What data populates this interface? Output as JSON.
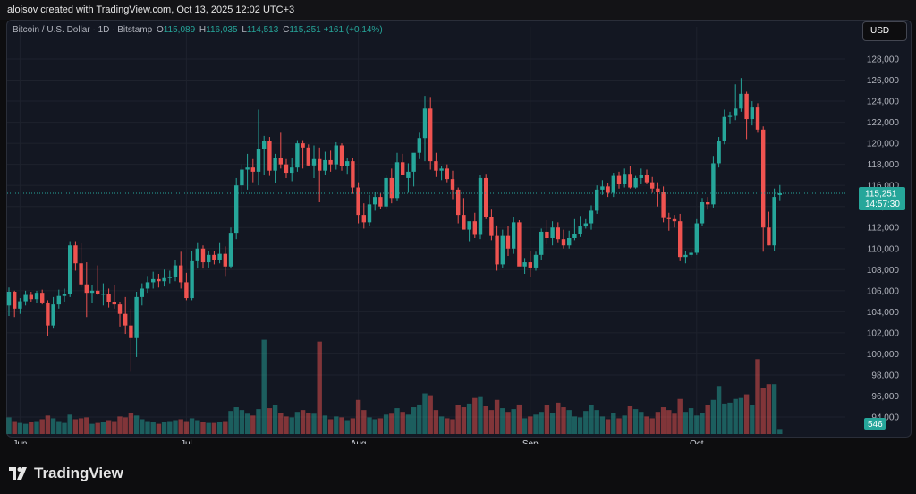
{
  "header": {
    "credit": "aloisov created with TradingView.com, Oct 13, 2025 12:02 UTC+3"
  },
  "legend": {
    "symbol": "Bitcoin / U.S. Dollar · 1D · Bitstamp",
    "o_label": "O",
    "o": "115,089",
    "h_label": "H",
    "h": "116,035",
    "l_label": "L",
    "l": "114,513",
    "c_label": "C",
    "c": "115,251",
    "change": "+161 (+0.14%)"
  },
  "currency": "USD",
  "brand": {
    "name": "TradingView"
  },
  "colors": {
    "up": "#26a69a",
    "down": "#ef5350",
    "background": "#131722",
    "grid": "#1e222d"
  },
  "chart_data": {
    "type": "candlestick",
    "title": "Bitcoin / U.S. Dollar · 1D · Bitstamp",
    "y_ticks": [
      "94,000",
      "96,000",
      "98,000",
      "100,000",
      "102,000",
      "104,000",
      "106,000",
      "108,000",
      "110,000",
      "112,000",
      "114,000",
      "116,000",
      "118,000",
      "120,000",
      "122,000",
      "124,000",
      "126,000",
      "128,000"
    ],
    "x_labels": [
      {
        "label": "Jun",
        "index": 2
      },
      {
        "label": "Jul",
        "index": 32
      },
      {
        "label": "Aug",
        "index": 63
      },
      {
        "label": "Sep",
        "index": 94
      },
      {
        "label": "Oct",
        "index": 124
      }
    ],
    "last_price_label": "115,251",
    "countdown": "14:57:30",
    "volume_label": "546",
    "last_price": 115251,
    "ylim": [
      93000,
      130000
    ],
    "volume_ylim": [
      0,
      12000
    ],
    "candles": [
      {
        "o": 104600,
        "h": 106300,
        "l": 103600,
        "c": 105900,
        "v": 1800
      },
      {
        "o": 105900,
        "h": 106000,
        "l": 103500,
        "c": 104300,
        "v": 1400
      },
      {
        "o": 104300,
        "h": 105300,
        "l": 103800,
        "c": 105000,
        "v": 1200
      },
      {
        "o": 105000,
        "h": 106000,
        "l": 104600,
        "c": 105600,
        "v": 1100
      },
      {
        "o": 105600,
        "h": 105900,
        "l": 104900,
        "c": 105200,
        "v": 1300
      },
      {
        "o": 105200,
        "h": 106000,
        "l": 104800,
        "c": 105800,
        "v": 1400
      },
      {
        "o": 105800,
        "h": 106100,
        "l": 104700,
        "c": 104800,
        "v": 1600
      },
      {
        "o": 104800,
        "h": 105100,
        "l": 101700,
        "c": 102700,
        "v": 2000
      },
      {
        "o": 102700,
        "h": 105400,
        "l": 102400,
        "c": 104700,
        "v": 1700
      },
      {
        "o": 104700,
        "h": 106100,
        "l": 104300,
        "c": 105500,
        "v": 1400
      },
      {
        "o": 105500,
        "h": 106200,
        "l": 104900,
        "c": 105700,
        "v": 1200
      },
      {
        "o": 105700,
        "h": 110700,
        "l": 105400,
        "c": 110300,
        "v": 2100
      },
      {
        "o": 110300,
        "h": 110700,
        "l": 107900,
        "c": 108600,
        "v": 1600
      },
      {
        "o": 108600,
        "h": 110500,
        "l": 106300,
        "c": 106600,
        "v": 1700
      },
      {
        "o": 106600,
        "h": 108700,
        "l": 103500,
        "c": 105800,
        "v": 1800
      },
      {
        "o": 105800,
        "h": 106500,
        "l": 104800,
        "c": 106000,
        "v": 1100
      },
      {
        "o": 106000,
        "h": 108400,
        "l": 105600,
        "c": 105700,
        "v": 1200
      },
      {
        "o": 105700,
        "h": 106700,
        "l": 104600,
        "c": 105700,
        "v": 1300
      },
      {
        "o": 105700,
        "h": 106200,
        "l": 104400,
        "c": 104900,
        "v": 1500
      },
      {
        "o": 104900,
        "h": 106500,
        "l": 104300,
        "c": 104700,
        "v": 1400
      },
      {
        "o": 104700,
        "h": 104900,
        "l": 102600,
        "c": 103800,
        "v": 1900
      },
      {
        "o": 103800,
        "h": 105400,
        "l": 101900,
        "c": 102700,
        "v": 1800
      },
      {
        "o": 102700,
        "h": 104300,
        "l": 98300,
        "c": 101500,
        "v": 2300
      },
      {
        "o": 101500,
        "h": 105900,
        "l": 99700,
        "c": 105400,
        "v": 2000
      },
      {
        "o": 105400,
        "h": 106700,
        "l": 104600,
        "c": 106200,
        "v": 1600
      },
      {
        "o": 106200,
        "h": 107400,
        "l": 105800,
        "c": 106800,
        "v": 1400
      },
      {
        "o": 106800,
        "h": 107800,
        "l": 106200,
        "c": 107100,
        "v": 1300
      },
      {
        "o": 107100,
        "h": 107600,
        "l": 106300,
        "c": 106900,
        "v": 1100
      },
      {
        "o": 106900,
        "h": 108000,
        "l": 106400,
        "c": 107200,
        "v": 1300
      },
      {
        "o": 107200,
        "h": 107900,
        "l": 106700,
        "c": 107300,
        "v": 1400
      },
      {
        "o": 107300,
        "h": 108900,
        "l": 106900,
        "c": 108400,
        "v": 1500
      },
      {
        "o": 108400,
        "h": 109700,
        "l": 106200,
        "c": 106800,
        "v": 1600
      },
      {
        "o": 106800,
        "h": 107700,
        "l": 105100,
        "c": 105300,
        "v": 1400
      },
      {
        "o": 105300,
        "h": 109800,
        "l": 105100,
        "c": 108800,
        "v": 1700
      },
      {
        "o": 108800,
        "h": 110600,
        "l": 108100,
        "c": 110000,
        "v": 1500
      },
      {
        "o": 110000,
        "h": 110300,
        "l": 108100,
        "c": 108700,
        "v": 1300
      },
      {
        "o": 108700,
        "h": 109800,
        "l": 108200,
        "c": 109400,
        "v": 1200
      },
      {
        "o": 109400,
        "h": 109800,
        "l": 108500,
        "c": 108900,
        "v": 1200
      },
      {
        "o": 108900,
        "h": 110600,
        "l": 108600,
        "c": 109500,
        "v": 1300
      },
      {
        "o": 109500,
        "h": 110200,
        "l": 107400,
        "c": 108300,
        "v": 1400
      },
      {
        "o": 108300,
        "h": 112000,
        "l": 108100,
        "c": 111500,
        "v": 2500
      },
      {
        "o": 111500,
        "h": 116700,
        "l": 110900,
        "c": 116000,
        "v": 2900
      },
      {
        "o": 116000,
        "h": 118000,
        "l": 115400,
        "c": 117500,
        "v": 2600
      },
      {
        "o": 117500,
        "h": 119000,
        "l": 115600,
        "c": 117700,
        "v": 2200
      },
      {
        "o": 117700,
        "h": 118500,
        "l": 116300,
        "c": 117300,
        "v": 2000
      },
      {
        "o": 117300,
        "h": 123200,
        "l": 116000,
        "c": 119500,
        "v": 2700
      },
      {
        "o": 119500,
        "h": 120700,
        "l": 117000,
        "c": 120200,
        "v": 10200
      },
      {
        "o": 120200,
        "h": 120600,
        "l": 116900,
        "c": 117400,
        "v": 2800
      },
      {
        "o": 117400,
        "h": 119000,
        "l": 116200,
        "c": 118600,
        "v": 3100
      },
      {
        "o": 118600,
        "h": 121000,
        "l": 117600,
        "c": 118000,
        "v": 2300
      },
      {
        "o": 118000,
        "h": 118500,
        "l": 116700,
        "c": 117200,
        "v": 1900
      },
      {
        "o": 117200,
        "h": 118600,
        "l": 116400,
        "c": 117700,
        "v": 1800
      },
      {
        "o": 117700,
        "h": 120300,
        "l": 117300,
        "c": 120000,
        "v": 2400
      },
      {
        "o": 120000,
        "h": 120300,
        "l": 117600,
        "c": 119600,
        "v": 2600
      },
      {
        "o": 119600,
        "h": 119900,
        "l": 117800,
        "c": 117900,
        "v": 2300
      },
      {
        "o": 117900,
        "h": 119800,
        "l": 116700,
        "c": 118500,
        "v": 2200
      },
      {
        "o": 118500,
        "h": 119600,
        "l": 114400,
        "c": 117400,
        "v": 10000
      },
      {
        "o": 117400,
        "h": 119200,
        "l": 117000,
        "c": 118400,
        "v": 2000
      },
      {
        "o": 118400,
        "h": 119300,
        "l": 117300,
        "c": 118000,
        "v": 1600
      },
      {
        "o": 118000,
        "h": 120100,
        "l": 117500,
        "c": 119800,
        "v": 1900
      },
      {
        "o": 119800,
        "h": 120000,
        "l": 117400,
        "c": 117800,
        "v": 1800
      },
      {
        "o": 117800,
        "h": 118600,
        "l": 117100,
        "c": 118300,
        "v": 1500
      },
      {
        "o": 118300,
        "h": 118600,
        "l": 115200,
        "c": 115800,
        "v": 1700
      },
      {
        "o": 115800,
        "h": 116300,
        "l": 112400,
        "c": 113200,
        "v": 3700
      },
      {
        "o": 113200,
        "h": 114300,
        "l": 111900,
        "c": 112500,
        "v": 2600
      },
      {
        "o": 112500,
        "h": 115100,
        "l": 112100,
        "c": 114200,
        "v": 1800
      },
      {
        "o": 114200,
        "h": 115400,
        "l": 113600,
        "c": 114900,
        "v": 1600
      },
      {
        "o": 114900,
        "h": 115300,
        "l": 113800,
        "c": 114000,
        "v": 1700
      },
      {
        "o": 114000,
        "h": 117000,
        "l": 113800,
        "c": 116700,
        "v": 2100
      },
      {
        "o": 116700,
        "h": 117600,
        "l": 114300,
        "c": 114800,
        "v": 2200
      },
      {
        "o": 114800,
        "h": 119100,
        "l": 114500,
        "c": 118200,
        "v": 2800
      },
      {
        "o": 118200,
        "h": 119000,
        "l": 117200,
        "c": 117000,
        "v": 2400
      },
      {
        "o": 116700,
        "h": 118100,
        "l": 115300,
        "c": 117300,
        "v": 2100
      },
      {
        "o": 117300,
        "h": 119000,
        "l": 115900,
        "c": 119100,
        "v": 2900
      },
      {
        "o": 119100,
        "h": 121000,
        "l": 118500,
        "c": 120500,
        "v": 3200
      },
      {
        "o": 120500,
        "h": 124500,
        "l": 118300,
        "c": 123300,
        "v": 4400
      },
      {
        "o": 123300,
        "h": 124400,
        "l": 117500,
        "c": 118300,
        "v": 4200
      },
      {
        "o": 118300,
        "h": 119100,
        "l": 116800,
        "c": 117400,
        "v": 2600
      },
      {
        "o": 117400,
        "h": 117800,
        "l": 116500,
        "c": 117600,
        "v": 1900
      },
      {
        "o": 117600,
        "h": 118000,
        "l": 116300,
        "c": 116600,
        "v": 1700
      },
      {
        "o": 116600,
        "h": 117400,
        "l": 114700,
        "c": 115600,
        "v": 1600
      },
      {
        "o": 115600,
        "h": 115800,
        "l": 112400,
        "c": 113200,
        "v": 3100
      },
      {
        "o": 113200,
        "h": 114800,
        "l": 112000,
        "c": 111800,
        "v": 2900
      },
      {
        "o": 111800,
        "h": 112400,
        "l": 110700,
        "c": 112600,
        "v": 3300
      },
      {
        "o": 112600,
        "h": 113400,
        "l": 111000,
        "c": 111300,
        "v": 3900
      },
      {
        "o": 111300,
        "h": 117000,
        "l": 110900,
        "c": 116700,
        "v": 4000
      },
      {
        "o": 116700,
        "h": 117100,
        "l": 112800,
        "c": 113000,
        "v": 3000
      },
      {
        "o": 113000,
        "h": 113700,
        "l": 110800,
        "c": 111200,
        "v": 2600
      },
      {
        "o": 111200,
        "h": 112200,
        "l": 107900,
        "c": 108500,
        "v": 3700
      },
      {
        "o": 108500,
        "h": 111800,
        "l": 108200,
        "c": 111200,
        "v": 2800
      },
      {
        "o": 111200,
        "h": 112100,
        "l": 109300,
        "c": 110000,
        "v": 2400
      },
      {
        "o": 110000,
        "h": 113000,
        "l": 109500,
        "c": 112500,
        "v": 2700
      },
      {
        "o": 112500,
        "h": 112700,
        "l": 108400,
        "c": 108300,
        "v": 3200
      },
      {
        "o": 108300,
        "h": 109100,
        "l": 107600,
        "c": 108700,
        "v": 1700
      },
      {
        "o": 108700,
        "h": 109800,
        "l": 107300,
        "c": 108200,
        "v": 1900
      },
      {
        "o": 108200,
        "h": 109700,
        "l": 107900,
        "c": 109400,
        "v": 2100
      },
      {
        "o": 109400,
        "h": 111900,
        "l": 108900,
        "c": 111600,
        "v": 2400
      },
      {
        "o": 111600,
        "h": 112700,
        "l": 110400,
        "c": 111000,
        "v": 3100
      },
      {
        "o": 111000,
        "h": 112600,
        "l": 110300,
        "c": 112000,
        "v": 2300
      },
      {
        "o": 112000,
        "h": 112500,
        "l": 110600,
        "c": 110900,
        "v": 3400
      },
      {
        "o": 110900,
        "h": 111800,
        "l": 110000,
        "c": 110300,
        "v": 2900
      },
      {
        "o": 110300,
        "h": 111700,
        "l": 110000,
        "c": 111000,
        "v": 2600
      },
      {
        "o": 111000,
        "h": 112800,
        "l": 110800,
        "c": 111400,
        "v": 1900
      },
      {
        "o": 111400,
        "h": 113100,
        "l": 111100,
        "c": 112100,
        "v": 1800
      },
      {
        "o": 112100,
        "h": 112800,
        "l": 111900,
        "c": 112400,
        "v": 2500
      },
      {
        "o": 112400,
        "h": 114100,
        "l": 111800,
        "c": 113600,
        "v": 3100
      },
      {
        "o": 113600,
        "h": 116000,
        "l": 113300,
        "c": 115600,
        "v": 2600
      },
      {
        "o": 115600,
        "h": 116500,
        "l": 115100,
        "c": 115900,
        "v": 1900
      },
      {
        "o": 115900,
        "h": 116200,
        "l": 114900,
        "c": 115300,
        "v": 1600
      },
      {
        "o": 115300,
        "h": 117200,
        "l": 114900,
        "c": 116900,
        "v": 2300
      },
      {
        "o": 116900,
        "h": 117300,
        "l": 115700,
        "c": 116100,
        "v": 1700
      },
      {
        "o": 116100,
        "h": 117600,
        "l": 115800,
        "c": 117100,
        "v": 2000
      },
      {
        "o": 117100,
        "h": 117800,
        "l": 115700,
        "c": 115800,
        "v": 3000
      },
      {
        "o": 115800,
        "h": 116900,
        "l": 115700,
        "c": 116700,
        "v": 2700
      },
      {
        "o": 116700,
        "h": 117600,
        "l": 116100,
        "c": 117000,
        "v": 2400
      },
      {
        "o": 117000,
        "h": 117500,
        "l": 116100,
        "c": 116300,
        "v": 1900
      },
      {
        "o": 116300,
        "h": 116800,
        "l": 115300,
        "c": 115700,
        "v": 1700
      },
      {
        "o": 115700,
        "h": 116300,
        "l": 114000,
        "c": 115400,
        "v": 2400
      },
      {
        "o": 115400,
        "h": 115900,
        "l": 112500,
        "c": 112900,
        "v": 2900
      },
      {
        "o": 112900,
        "h": 113400,
        "l": 111700,
        "c": 112800,
        "v": 2600
      },
      {
        "o": 112800,
        "h": 113200,
        "l": 112000,
        "c": 112600,
        "v": 2200
      },
      {
        "o": 112600,
        "h": 113300,
        "l": 108800,
        "c": 109200,
        "v": 3800
      },
      {
        "o": 109200,
        "h": 109800,
        "l": 108600,
        "c": 109400,
        "v": 2400
      },
      {
        "o": 109400,
        "h": 109900,
        "l": 109200,
        "c": 109600,
        "v": 2800
      },
      {
        "o": 109600,
        "h": 112800,
        "l": 109400,
        "c": 112400,
        "v": 2000
      },
      {
        "o": 112400,
        "h": 114800,
        "l": 112100,
        "c": 114400,
        "v": 2300
      },
      {
        "o": 114400,
        "h": 114900,
        "l": 113700,
        "c": 114200,
        "v": 3100
      },
      {
        "o": 114200,
        "h": 118800,
        "l": 113900,
        "c": 118100,
        "v": 3700
      },
      {
        "o": 118100,
        "h": 120600,
        "l": 117700,
        "c": 120200,
        "v": 5200
      },
      {
        "o": 120200,
        "h": 123200,
        "l": 119900,
        "c": 122500,
        "v": 3300
      },
      {
        "o": 122500,
        "h": 123000,
        "l": 121900,
        "c": 122600,
        "v": 3400
      },
      {
        "o": 122600,
        "h": 125600,
        "l": 122200,
        "c": 123300,
        "v": 3800
      },
      {
        "o": 123300,
        "h": 126200,
        "l": 123000,
        "c": 124700,
        "v": 3900
      },
      {
        "o": 124700,
        "h": 124900,
        "l": 120400,
        "c": 122300,
        "v": 4300
      },
      {
        "o": 122300,
        "h": 124000,
        "l": 121700,
        "c": 123400,
        "v": 3100
      },
      {
        "o": 123400,
        "h": 123800,
        "l": 121000,
        "c": 121300,
        "v": 8100
      },
      {
        "o": 121300,
        "h": 121600,
        "l": 109700,
        "c": 112000,
        "v": 5000
      },
      {
        "o": 112000,
        "h": 113500,
        "l": 110300,
        "c": 110300,
        "v": 5400
      },
      {
        "o": 110300,
        "h": 115700,
        "l": 109800,
        "c": 114900,
        "v": 5400
      },
      {
        "o": 115089,
        "h": 116035,
        "l": 114513,
        "c": 115251,
        "v": 546
      }
    ]
  }
}
